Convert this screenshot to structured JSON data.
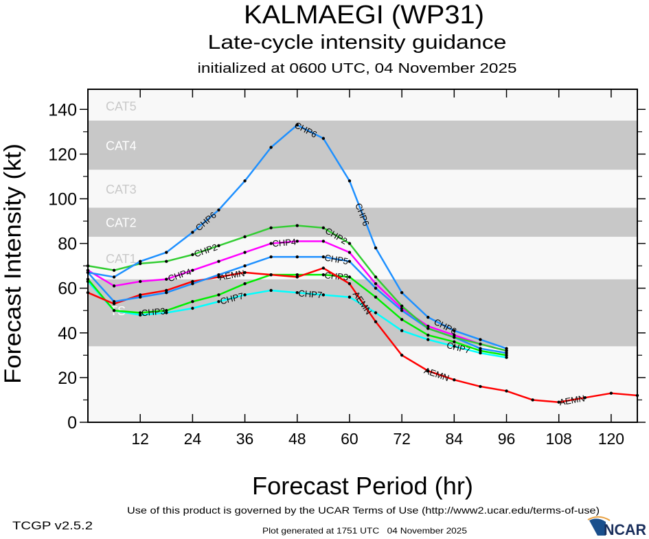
{
  "header": {
    "title": "KALMAEGI (WP31)",
    "subtitle": "Late-cycle intensity guidance",
    "init_line": "initialized at 0600 UTC, 04 November 2025"
  },
  "footer": {
    "terms": "Use of this product is governed by the UCAR Terms of Use (http://www2.ucar.edu/terms-of-use)",
    "version": "TCGP v2.5.2",
    "generated": "Plot generated at 1751 UTC   04 November 2025",
    "logo_text": "NCAR"
  },
  "chart_data": {
    "type": "line",
    "title": "KALMAEGI (WP31)",
    "xlabel": "Forecast Period (hr)",
    "ylabel": "Forecast Intensity (kt)",
    "xlim": [
      0,
      126
    ],
    "ylim": [
      0,
      149
    ],
    "xticks": [
      12,
      24,
      36,
      48,
      60,
      72,
      84,
      96,
      108,
      120
    ],
    "yticks": [
      0,
      20,
      40,
      60,
      80,
      100,
      120,
      140
    ],
    "grid": false,
    "legend": "none (labels on lines)",
    "bands": [
      {
        "label": "TS",
        "from": 34,
        "to": 64,
        "color": "#c8c8c8",
        "text_color": "#ffffff"
      },
      {
        "label": "CAT1",
        "from": 64,
        "to": 83,
        "color": "#f8f8f8",
        "text_color": "#c8c8c8"
      },
      {
        "label": "CAT2",
        "from": 83,
        "to": 96,
        "color": "#c8c8c8",
        "text_color": "#ffffff"
      },
      {
        "label": "CAT3",
        "from": 96,
        "to": 113,
        "color": "#f8f8f8",
        "text_color": "#c8c8c8"
      },
      {
        "label": "CAT4",
        "from": 113,
        "to": 135,
        "color": "#c8c8c8",
        "text_color": "#ffffff"
      },
      {
        "label": "CAT5",
        "from": 135,
        "to": 149,
        "color": "#f8f8f8",
        "text_color": "#c8c8c8"
      }
    ],
    "series": [
      {
        "name": "CHP7",
        "color": "#00ffff",
        "x": [
          0,
          6,
          12,
          18,
          24,
          30,
          36,
          42,
          48,
          54,
          60,
          66,
          72,
          78,
          84,
          90,
          96
        ],
        "y": [
          63,
          50,
          48,
          49,
          51,
          54,
          57,
          59,
          58,
          57,
          56,
          49,
          41,
          37,
          34,
          31,
          29
        ]
      },
      {
        "name": "CHP3",
        "color": "#00ee00",
        "x": [
          0,
          6,
          12,
          18,
          24,
          30,
          36,
          42,
          48,
          54,
          60,
          66,
          72,
          78,
          84,
          90,
          96
        ],
        "y": [
          64,
          50,
          49,
          50,
          54,
          57,
          62,
          66,
          66,
          66,
          65,
          56,
          46,
          39,
          36,
          32,
          30
        ]
      },
      {
        "name": "AEMN",
        "color": "#ff0000",
        "x": [
          0,
          6,
          12,
          18,
          24,
          30,
          36,
          42,
          48,
          54,
          60,
          66,
          72,
          78,
          84,
          90,
          96,
          102,
          108,
          114,
          120,
          126
        ],
        "y": [
          58,
          53,
          57,
          59,
          63,
          65,
          67,
          66,
          65,
          69,
          62,
          45,
          30,
          23,
          19,
          16,
          14,
          10,
          9,
          11,
          13,
          12
        ]
      },
      {
        "name": "CHP5",
        "color": "#1e90ff",
        "x": [
          0,
          6,
          12,
          18,
          24,
          30,
          36,
          42,
          48,
          54,
          60,
          66,
          72,
          78,
          84,
          90,
          96
        ],
        "y": [
          67,
          54,
          56,
          58,
          62,
          66,
          70,
          74,
          74,
          74,
          72,
          60,
          50,
          42,
          38,
          33,
          31
        ]
      },
      {
        "name": "CHP4",
        "color": "#ff00ff",
        "x": [
          0,
          6,
          12,
          18,
          24,
          30,
          36,
          42,
          48,
          54,
          60,
          66,
          72,
          78,
          84,
          90,
          96
        ],
        "y": [
          68,
          61,
          63,
          64,
          68,
          72,
          76,
          80,
          81,
          81,
          76,
          62,
          51,
          43,
          39,
          35,
          32
        ]
      },
      {
        "name": "CHP2",
        "color": "#32cd32",
        "x": [
          0,
          6,
          12,
          18,
          24,
          30,
          36,
          42,
          48,
          54,
          60,
          66,
          72,
          78,
          84,
          90,
          96
        ],
        "y": [
          70,
          68,
          71,
          72,
          75,
          79,
          83,
          87,
          88,
          87,
          80,
          65,
          52,
          42,
          38,
          35,
          32
        ]
      },
      {
        "name": "CHP6",
        "color": "#1e90ff",
        "x": [
          0,
          6,
          12,
          18,
          24,
          30,
          36,
          42,
          48,
          54,
          60,
          66,
          72,
          78,
          84,
          90,
          96
        ],
        "y": [
          67,
          65,
          72,
          76,
          85,
          95,
          108,
          123,
          133,
          127,
          108,
          78,
          58,
          47,
          41,
          37,
          33
        ]
      }
    ]
  }
}
